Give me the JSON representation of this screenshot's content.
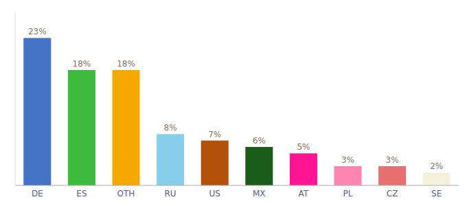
{
  "chart_data": {
    "type": "bar",
    "categories": [
      "DE",
      "ES",
      "OTH",
      "RU",
      "US",
      "MX",
      "AT",
      "PL",
      "CZ",
      "SE"
    ],
    "values": [
      23,
      18,
      18,
      8,
      7,
      6,
      5,
      3,
      3,
      2
    ],
    "value_labels": [
      "23%",
      "18%",
      "18%",
      "8%",
      "7%",
      "6%",
      "5%",
      "3%",
      "3%",
      "2%"
    ],
    "colors": [
      "#4472c4",
      "#3dbb3d",
      "#f5a800",
      "#87ceeb",
      "#b5500a",
      "#1a5c1a",
      "#ff1493",
      "#ff85b0",
      "#e87070",
      "#f5f0dc"
    ],
    "ylim": [
      0,
      27
    ],
    "data_labels": true,
    "tick_labels": "x",
    "grid": false
  }
}
